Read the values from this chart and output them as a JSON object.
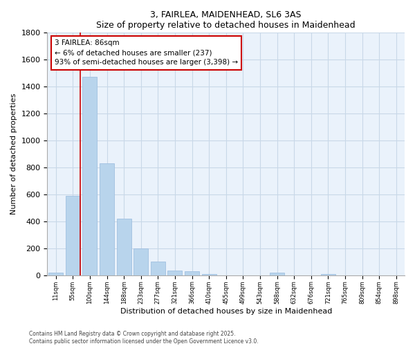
{
  "title1": "3, FAIRLEA, MAIDENHEAD, SL6 3AS",
  "title2": "Size of property relative to detached houses in Maidenhead",
  "xlabel": "Distribution of detached houses by size in Maidenhead",
  "ylabel": "Number of detached properties",
  "categories": [
    "11sqm",
    "55sqm",
    "100sqm",
    "144sqm",
    "188sqm",
    "233sqm",
    "277sqm",
    "321sqm",
    "366sqm",
    "410sqm",
    "455sqm",
    "499sqm",
    "543sqm",
    "588sqm",
    "632sqm",
    "676sqm",
    "721sqm",
    "765sqm",
    "809sqm",
    "854sqm",
    "898sqm"
  ],
  "values": [
    20,
    590,
    1470,
    830,
    420,
    200,
    100,
    35,
    30,
    10,
    0,
    0,
    0,
    20,
    0,
    0,
    10,
    0,
    0,
    0,
    0
  ],
  "bar_color": "#b8d4ec",
  "bar_edge_color": "#a0c0e0",
  "grid_color": "#c8d8e8",
  "annotation_box_color": "#cc0000",
  "annotation_line_color": "#cc0000",
  "ylim": [
    0,
    1800
  ],
  "red_line_x": 1.5,
  "annotation_text": "3 FAIRLEA: 86sqm\n← 6% of detached houses are smaller (237)\n93% of semi-detached houses are larger (3,398) →",
  "footnote1": "Contains HM Land Registry data © Crown copyright and database right 2025.",
  "footnote2": "Contains public sector information licensed under the Open Government Licence v3.0.",
  "background_color": "#ffffff",
  "plot_background_color": "#eaf2fb"
}
